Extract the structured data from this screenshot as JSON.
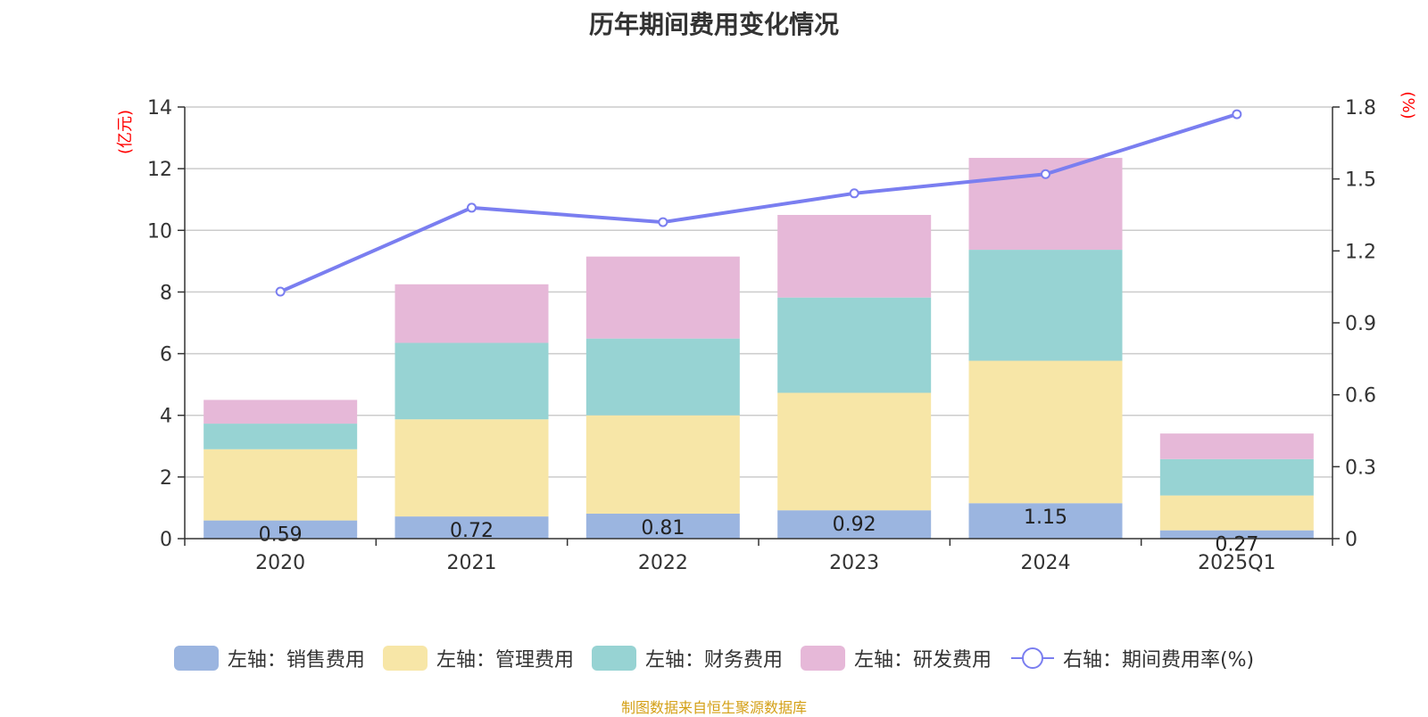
{
  "chart_data": {
    "type": "bar",
    "title": "历年期间费用变化情况",
    "categories": [
      "2020",
      "2021",
      "2022",
      "2023",
      "2024",
      "2025Q1"
    ],
    "ylabel_left": "(亿元)",
    "ylabel_right": "(%)",
    "ylim_left": [
      0,
      14
    ],
    "ylim_right": [
      0,
      1.8
    ],
    "yticks_left": [
      "0",
      "2",
      "4",
      "6",
      "8",
      "10",
      "12",
      "14"
    ],
    "yticks_right": [
      "0",
      "0.3",
      "0.6",
      "0.9",
      "1.2",
      "1.5",
      "1.8"
    ],
    "stacked": true,
    "series": [
      {
        "name": "左轴：销售费用",
        "color": "#9bb5e0",
        "values": [
          0.59,
          0.72,
          0.81,
          0.92,
          1.15,
          0.27
        ],
        "labels": [
          "0.59",
          "0.72",
          "0.81",
          "0.92",
          "1.15",
          "0.27"
        ]
      },
      {
        "name": "左轴：管理费用",
        "color": "#f7e6a7",
        "values": [
          2.31,
          3.15,
          3.19,
          3.81,
          4.62,
          1.13
        ]
      },
      {
        "name": "左轴：财务费用",
        "color": "#97d3d3",
        "values": [
          0.83,
          2.48,
          2.49,
          3.09,
          3.6,
          1.18
        ]
      },
      {
        "name": "左轴：研发费用",
        "color": "#e6b8d8",
        "values": [
          0.77,
          1.9,
          2.66,
          2.68,
          2.98,
          0.83
        ]
      }
    ],
    "line_series": {
      "name": "右轴：期间费用率(%)",
      "color": "#7a7ef0",
      "axis": "right",
      "values": [
        1.03,
        1.38,
        1.32,
        1.44,
        1.52,
        1.77
      ]
    },
    "gridlines": true,
    "legend_position": "bottom"
  },
  "source": "制图数据来自恒生聚源数据库"
}
